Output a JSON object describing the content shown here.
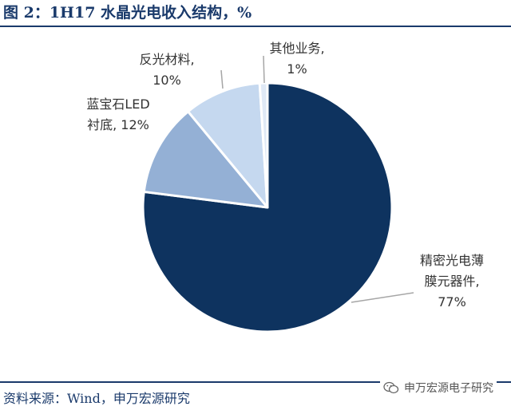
{
  "title": "图 2：1H17 水晶光电收入结构，%",
  "source": "资料来源：Wind，申万宏源研究",
  "watermark": "申万宏源电子研究",
  "colors": {
    "accent": "#1a3a6b",
    "slice_main": "#0e335f",
    "slice_sapphire": "#94b0d5",
    "slice_reflect": "#c5d8ef",
    "slice_other": "#dfe9f6",
    "leader": "#a6a6a6"
  },
  "chart_data": {
    "type": "pie",
    "title": "1H17 水晶光电收入结构，%",
    "start_angle_deg": 0,
    "direction": "clockwise",
    "slices": [
      {
        "name": "精密光电薄膜元器件",
        "value": 77,
        "label_lines": [
          "精密光电薄",
          "膜元器件,",
          "77%"
        ],
        "color": "#0e335f"
      },
      {
        "name": "蓝宝石LED衬底",
        "value": 12,
        "label_lines": [
          "蓝宝石LED",
          "衬底, 12%"
        ],
        "color": "#94b0d5"
      },
      {
        "name": "反光材料",
        "value": 10,
        "label_lines": [
          "反光材料,",
          "10%"
        ],
        "color": "#c5d8ef"
      },
      {
        "name": "其他业务",
        "value": 1,
        "label_lines": [
          "其他业务,",
          "1%"
        ],
        "color": "#dfe9f6"
      }
    ]
  }
}
